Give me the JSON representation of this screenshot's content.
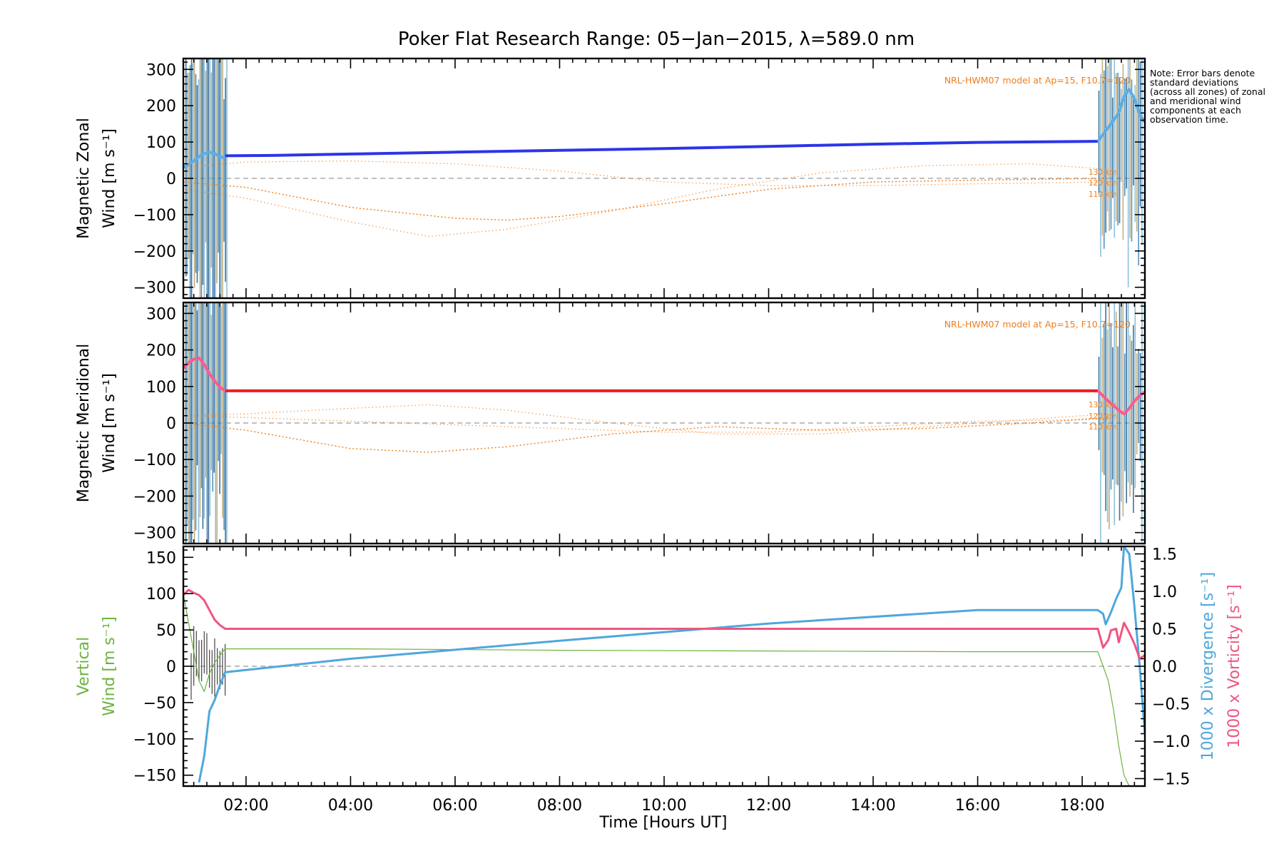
{
  "figure": {
    "title": "Poker Flat Research Range: 05−Jan−2015, λ=589.0 nm",
    "xlabel": "Time [Hours UT]",
    "note": "Note: Error bars denote standard deviations (across all zones) of zonal and meridional wind components at each observation time.",
    "colors": {
      "axis": "#000000",
      "zonal": "#2b35e8",
      "zonal_light": "#5aaee6",
      "meridional": "#ee1c25",
      "meridional_light": "#ff5a90",
      "model": "#f07d1a",
      "vertical": "#6cb33f",
      "divergence": "#4fa7dc",
      "vorticity": "#f0557f",
      "zero_line": "#999999",
      "errorbar_a": "#1f5a8a",
      "errorbar_b": "#7ab6d8",
      "errorbar_c": "#b9a36b"
    }
  },
  "chart_data": [
    {
      "type": "line",
      "panel": "zonal",
      "ylabel_line1": "Magnetic Zonal",
      "ylabel_line2": "Wind [m s⁻¹]",
      "ylim": [
        -330,
        330
      ],
      "xlim": [
        0.8,
        19.2
      ],
      "yticks": [
        -300,
        -200,
        -100,
        0,
        100,
        200,
        300
      ],
      "annotation": "NRL-HWM07 model at Ap=15, F10.7=120",
      "alt_labels": [
        "130 km",
        "120 km",
        "110 km"
      ],
      "series": [
        {
          "name": "Mean zonal wind",
          "x": [
            1.6,
            2.5,
            4,
            6,
            8,
            10,
            12,
            14,
            16,
            18.3
          ],
          "y": [
            62,
            63,
            67,
            72,
            77,
            82,
            88,
            94,
            99,
            102
          ]
        },
        {
          "name": "Zonal wind early",
          "x": [
            0.8,
            0.9,
            1.0,
            1.1,
            1.2,
            1.3,
            1.4,
            1.5,
            1.6
          ],
          "y": [
            30,
            38,
            48,
            60,
            68,
            72,
            68,
            60,
            55
          ]
        },
        {
          "name": "Zonal wind late",
          "x": [
            18.3,
            18.5,
            18.7,
            18.8,
            18.9,
            19.0,
            19.1,
            19.2
          ],
          "y": [
            102,
            140,
            180,
            225,
            245,
            220,
            175,
            155
          ]
        },
        {
          "name": "HWM07 130 km",
          "x": [
            0.8,
            2,
            4,
            5.5,
            7,
            9,
            11,
            13,
            15,
            17,
            18.5
          ],
          "y": [
            -30,
            -55,
            -120,
            -160,
            -140,
            -90,
            -30,
            15,
            35,
            40,
            25
          ]
        },
        {
          "name": "HWM07 120 km",
          "x": [
            0.8,
            2,
            4,
            6,
            7,
            8,
            10,
            12,
            14,
            16,
            18.5
          ],
          "y": [
            -10,
            -25,
            -80,
            -110,
            -115,
            -105,
            -70,
            -30,
            -10,
            -5,
            0
          ]
        },
        {
          "name": "HWM07 110 km",
          "x": [
            0.8,
            2,
            4,
            6,
            8,
            10,
            12,
            14,
            16,
            18.5
          ],
          "y": [
            30,
            45,
            48,
            40,
            20,
            -10,
            -20,
            -20,
            -15,
            -10
          ]
        }
      ]
    },
    {
      "type": "line",
      "panel": "meridional",
      "ylabel_line1": "Magnetic Meridional",
      "ylabel_line2": "Wind [m s⁻¹]",
      "ylim": [
        -330,
        330
      ],
      "xlim": [
        0.8,
        19.2
      ],
      "yticks": [
        -300,
        -200,
        -100,
        0,
        100,
        200,
        300
      ],
      "annotation": "NRL-HWM07 model at Ap=15, F10.7=120",
      "alt_labels": [
        "130 km",
        "120 km",
        "110 km"
      ],
      "series": [
        {
          "name": "Mean meridional wind",
          "x": [
            1.6,
            4,
            8,
            12,
            16,
            18.3
          ],
          "y": [
            88,
            88,
            88,
            88,
            88,
            88
          ]
        },
        {
          "name": "Meridional wind early",
          "x": [
            0.8,
            0.9,
            1.0,
            1.1,
            1.2,
            1.3,
            1.4,
            1.5,
            1.6
          ],
          "y": [
            150,
            165,
            175,
            178,
            160,
            135,
            115,
            98,
            88
          ]
        },
        {
          "name": "Meridional wind late",
          "x": [
            18.3,
            18.5,
            18.7,
            18.8,
            18.9,
            19.0,
            19.1,
            19.2
          ],
          "y": [
            88,
            60,
            35,
            25,
            40,
            60,
            75,
            85
          ]
        },
        {
          "name": "HWM07 130 km",
          "x": [
            0.8,
            2,
            4,
            5.5,
            7,
            9,
            11,
            13,
            15,
            17,
            18.5
          ],
          "y": [
            20,
            25,
            40,
            50,
            35,
            0,
            -30,
            -30,
            -10,
            10,
            25
          ]
        },
        {
          "name": "HWM07 120 km",
          "x": [
            0.8,
            2,
            4,
            5.5,
            7,
            9,
            11,
            13,
            15,
            17,
            18.5
          ],
          "y": [
            0,
            -20,
            -70,
            -80,
            -65,
            -30,
            -10,
            -20,
            -15,
            0,
            15
          ]
        },
        {
          "name": "HWM07 110 km",
          "x": [
            0.8,
            2,
            4,
            6,
            8,
            10,
            12,
            14,
            16,
            18.5
          ],
          "y": [
            20,
            15,
            5,
            -5,
            -15,
            -25,
            -25,
            -10,
            5,
            10
          ]
        }
      ]
    },
    {
      "type": "line",
      "panel": "vertical",
      "ylabel_line1": "Vertical",
      "ylabel_line2": "Wind [m s⁻¹]",
      "ylim": [
        -165,
        165
      ],
      "xlim": [
        0.8,
        19.2
      ],
      "yticks": [
        -150,
        -100,
        -50,
        0,
        50,
        100,
        150
      ],
      "y2label_line1": "1000 x Divergence [s⁻¹]",
      "y2label_line2": "1000 x Vorticity [s⁻¹]",
      "y2lim": [
        -1.6,
        1.6
      ],
      "y2ticks": [
        -1.5,
        -1.0,
        -0.5,
        0.0,
        0.5,
        1.0,
        1.5
      ],
      "y2ticklabels": [
        "-1.5",
        "-1.0",
        "-0.5",
        "0.0",
        "0.5",
        "1.0",
        "1.5"
      ],
      "xticks": [
        2,
        4,
        6,
        8,
        10,
        12,
        14,
        16,
        18
      ],
      "xticklabels": [
        "02:00",
        "04:00",
        "06:00",
        "08:00",
        "10:00",
        "12:00",
        "14:00",
        "16:00",
        "18:00"
      ],
      "series": [
        {
          "name": "Vertical wind",
          "axis": "left",
          "x": [
            0.8,
            0.9,
            1.0,
            1.1,
            1.2,
            1.3,
            1.4,
            1.5,
            1.6,
            4,
            8,
            12,
            16,
            18.3,
            18.4,
            18.5,
            18.6,
            18.7,
            18.8,
            18.9
          ],
          "y": [
            100,
            60,
            20,
            -20,
            -35,
            -10,
            5,
            15,
            24,
            24,
            22,
            21,
            20,
            20,
            0,
            -20,
            -60,
            -110,
            -150,
            -165
          ]
        },
        {
          "name": "Divergence",
          "axis": "right",
          "x": [
            1.1,
            1.2,
            1.3,
            1.4,
            1.5,
            1.6,
            4,
            8,
            12,
            16,
            18.3,
            18.4,
            18.45,
            18.55,
            18.65,
            18.75,
            18.8,
            18.9,
            19.0,
            19.1,
            19.2
          ],
          "y": [
            -1.55,
            -1.2,
            -0.6,
            -0.45,
            -0.25,
            -0.08,
            0.1,
            0.34,
            0.57,
            0.75,
            0.75,
            0.7,
            0.56,
            0.72,
            0.9,
            1.05,
            1.6,
            1.5,
            0.8,
            0.0,
            -0.9
          ]
        },
        {
          "name": "Vorticity",
          "axis": "right",
          "x": [
            0.8,
            0.9,
            1.0,
            1.1,
            1.2,
            1.3,
            1.4,
            1.5,
            1.6,
            4,
            8,
            12,
            16,
            18.3,
            18.4,
            18.5,
            18.55,
            18.65,
            18.7,
            18.8,
            18.9,
            19.0,
            19.1,
            19.2
          ],
          "y": [
            0.95,
            1.02,
            0.98,
            0.95,
            0.88,
            0.75,
            0.62,
            0.55,
            0.5,
            0.5,
            0.5,
            0.5,
            0.5,
            0.5,
            0.25,
            0.35,
            0.48,
            0.5,
            0.32,
            0.58,
            0.45,
            0.3,
            0.1,
            0.15
          ]
        }
      ]
    }
  ]
}
